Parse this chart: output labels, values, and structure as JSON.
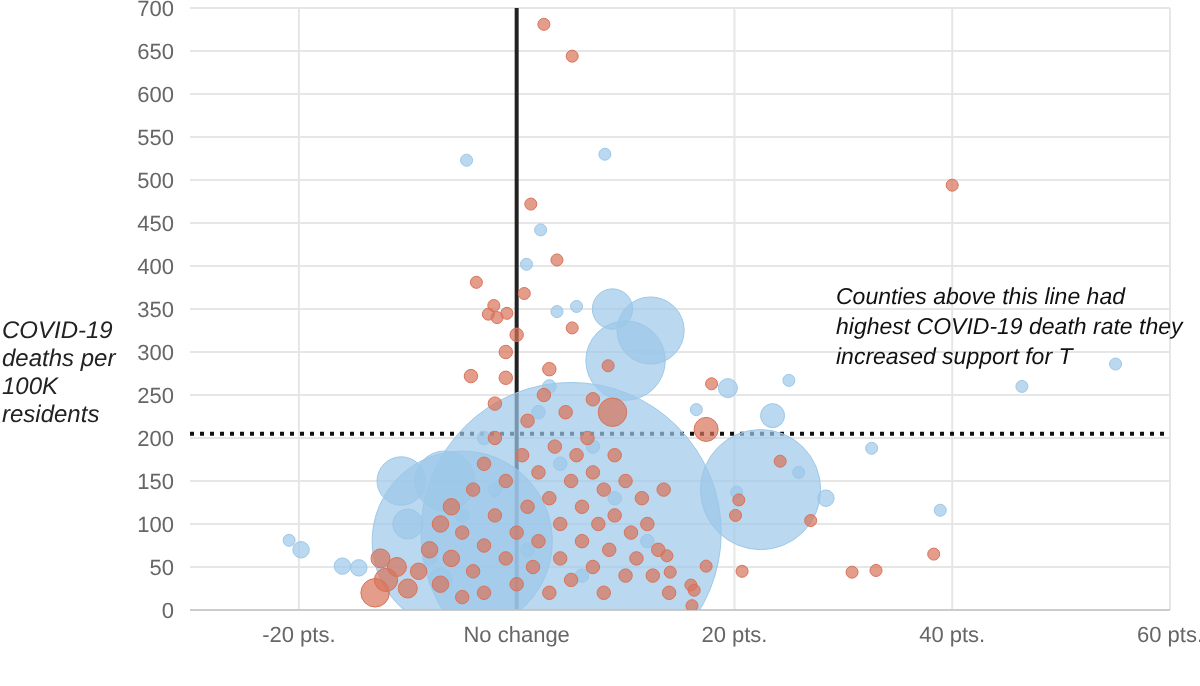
{
  "chart_data": {
    "type": "bubble",
    "ylabel": "COVID-19 deaths per 100K residents",
    "annotations": [
      "Counties above this line had highest COVID-19 death rate they increased support for T"
    ],
    "xlim": [
      -30,
      60
    ],
    "xticks": [
      {
        "value": -20,
        "label": "-20 pts."
      },
      {
        "value": 0,
        "label": "No change"
      },
      {
        "value": 20,
        "label": "20 pts."
      },
      {
        "value": 40,
        "label": "40 pts."
      },
      {
        "value": 60,
        "label": "60 pts."
      }
    ],
    "ylim": [
      0,
      700
    ],
    "yticks": [
      0,
      50,
      100,
      150,
      200,
      250,
      300,
      350,
      400,
      450,
      500,
      550,
      600,
      650,
      700
    ],
    "grid": true,
    "ref_lines": [
      {
        "axis": "x",
        "value": 0,
        "color": "#222222",
        "line_style": "solid"
      },
      {
        "axis": "y",
        "value": 205,
        "color": "#111111",
        "line_style": "dotted"
      }
    ],
    "series": [
      {
        "color": "#9dc8e8",
        "x": [
          5,
          -5,
          22.4,
          10,
          12.3,
          8.8,
          -6.6,
          -10.6,
          -4.6,
          8.1,
          2.2,
          0.9,
          3.7,
          5.5,
          19.4,
          25,
          46.4,
          23.5,
          16.5,
          32.6,
          25.9,
          28.4,
          38.9,
          20.2,
          55,
          -20.9,
          -19.8,
          -16,
          -14.5,
          -8,
          -5,
          -2,
          1,
          4,
          6,
          9,
          12,
          -10,
          -3,
          2,
          7,
          -7,
          3
        ],
        "values": [
          90,
          80,
          140,
          290,
          325,
          350,
          150,
          150,
          523,
          530,
          442,
          402,
          347,
          353,
          258,
          267,
          260,
          226,
          233,
          188,
          160,
          130,
          116,
          137,
          286,
          81,
          70,
          51,
          49,
          60,
          110,
          140,
          70,
          170,
          40,
          130,
          80,
          100,
          200,
          230,
          190,
          35,
          260
        ],
        "sizes": [
          1,
          0.36,
          0.16,
          0.07,
          0.05,
          0.018,
          0.04,
          0.026,
          0.0016,
          0.0016,
          0.0016,
          0.0016,
          0.0016,
          0.0016,
          0.004,
          0.0016,
          0.0016,
          0.0064,
          0.0016,
          0.0016,
          0.0016,
          0.003,
          0.0016,
          0.0016,
          0.0016,
          0.0016,
          0.003,
          0.003,
          0.003,
          0.002,
          0.002,
          0.002,
          0.002,
          0.002,
          0.002,
          0.002,
          0.002,
          0.01,
          0.002,
          0.002,
          0.002,
          0.006,
          0.002
        ]
      },
      {
        "color": "#d8735a",
        "x": [
          2.5,
          5.1,
          1.3,
          3.7,
          -3.7,
          -2.1,
          -2.6,
          -1.8,
          -0.9,
          0.7,
          5.1,
          40,
          8.4,
          17.9,
          8.8,
          17.4,
          24.2,
          20.4,
          20.1,
          27,
          17.4,
          20.7,
          30.8,
          33,
          38.3,
          16,
          16.3,
          16.1,
          14.1,
          13.8,
          -13,
          -12,
          -11,
          -12.5,
          -10,
          -9,
          -8,
          -7,
          -7,
          -6,
          -6,
          -5,
          -5,
          -4,
          -4,
          -3,
          -3,
          -3,
          -2,
          -2,
          -2,
          -1,
          -1,
          -1,
          0,
          0,
          0.5,
          1,
          1,
          1.5,
          2,
          2,
          2.5,
          3,
          3,
          3.5,
          4,
          4,
          4.5,
          5,
          5,
          5.5,
          6,
          6,
          6.5,
          7,
          7,
          7.5,
          8,
          8,
          8.5,
          9,
          9,
          10,
          10,
          10.5,
          11,
          11.5,
          12,
          12.5,
          13,
          13.5,
          14,
          -1,
          -4.2,
          0,
          3,
          7
        ],
        "values": [
          681,
          644,
          472,
          407,
          381,
          354,
          344,
          340,
          345,
          368,
          328,
          494,
          284,
          263,
          230,
          210,
          173,
          128,
          110,
          104,
          51,
          45,
          44,
          46,
          65,
          29,
          23,
          5,
          44,
          63,
          20,
          35,
          50,
          60,
          25,
          45,
          70,
          30,
          100,
          120,
          60,
          15,
          90,
          140,
          45,
          170,
          75,
          20,
          110,
          200,
          240,
          150,
          60,
          270,
          90,
          30,
          180,
          120,
          220,
          50,
          160,
          80,
          250,
          20,
          130,
          190,
          60,
          100,
          230,
          150,
          35,
          180,
          80,
          120,
          200,
          50,
          160,
          100,
          140,
          20,
          70,
          180,
          110,
          40,
          150,
          90,
          60,
          130,
          100,
          40,
          70,
          140,
          20,
          300,
          272,
          320,
          280,
          245
        ],
        "sizes": [
          0.0016,
          0.0016,
          0.0016,
          0.0016,
          0.0016,
          0.0016,
          0.0016,
          0.0016,
          0.0016,
          0.0016,
          0.0016,
          0.0016,
          0.0016,
          0.0016,
          0.009,
          0.0064,
          0.0016,
          0.0016,
          0.0016,
          0.0016,
          0.0016,
          0.0016,
          0.0016,
          0.0016,
          0.0016,
          0.0016,
          0.0016,
          0.0016,
          0.0016,
          0.0016,
          0.009,
          0.006,
          0.004,
          0.004,
          0.004,
          0.003,
          0.003,
          0.003,
          0.003,
          0.003,
          0.003,
          0.002,
          0.002,
          0.002,
          0.002,
          0.002,
          0.002,
          0.002,
          0.002,
          0.002,
          0.002,
          0.002,
          0.002,
          0.002,
          0.002,
          0.002,
          0.002,
          0.002,
          0.002,
          0.002,
          0.002,
          0.002,
          0.002,
          0.002,
          0.002,
          0.002,
          0.002,
          0.002,
          0.002,
          0.002,
          0.002,
          0.002,
          0.002,
          0.002,
          0.002,
          0.002,
          0.002,
          0.002,
          0.002,
          0.002,
          0.002,
          0.002,
          0.002,
          0.002,
          0.002,
          0.002,
          0.002,
          0.002,
          0.002,
          0.002,
          0.002,
          0.002,
          0.002,
          0.002,
          0.002,
          0.002,
          0.002,
          0.002
        ]
      }
    ]
  }
}
